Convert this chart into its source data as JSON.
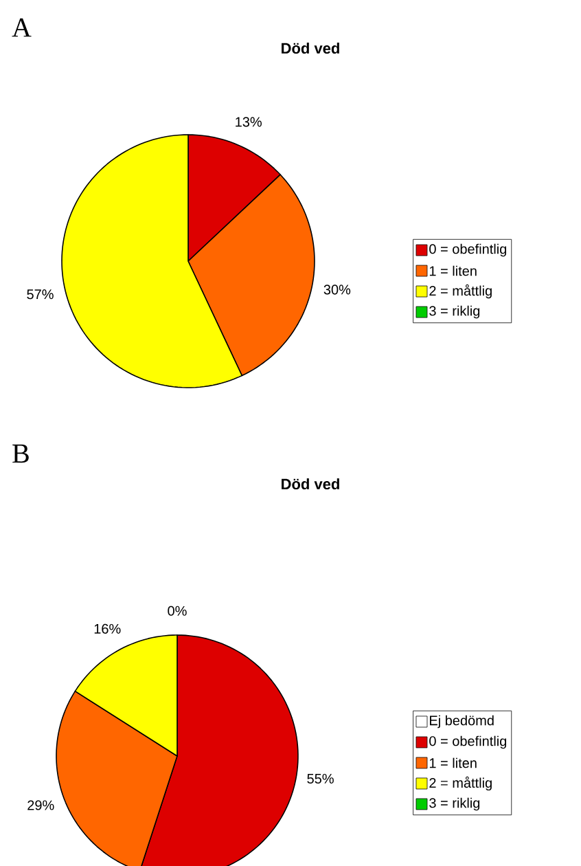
{
  "chart_data": [
    {
      "type": "pie",
      "title": "Död ved",
      "annotations": [
        "A"
      ],
      "categories": [
        "0 = obefintlig",
        "1 = liten",
        "2 = måttlig",
        "3 = riklig"
      ],
      "values": [
        13,
        30,
        57,
        0
      ],
      "colors": [
        "#dd0000",
        "#ff6600",
        "#ffff00",
        "#00cc00"
      ],
      "value_labels": [
        "13%",
        "30%",
        "57%",
        null
      ],
      "legend": "right"
    },
    {
      "type": "pie",
      "title": "Död ved",
      "annotations": [
        "B"
      ],
      "categories": [
        "Ej bedömd",
        "0 = obefintlig",
        "1 = liten",
        "2 = måttlig",
        "3 = riklig"
      ],
      "values": [
        0,
        55,
        29,
        16,
        0
      ],
      "colors": [
        "#ffffff",
        "#dd0000",
        "#ff6600",
        "#ffff00",
        "#00cc00"
      ],
      "value_labels": [
        null,
        "55%",
        "29%",
        "16%",
        "0%"
      ],
      "legend": "right"
    }
  ]
}
